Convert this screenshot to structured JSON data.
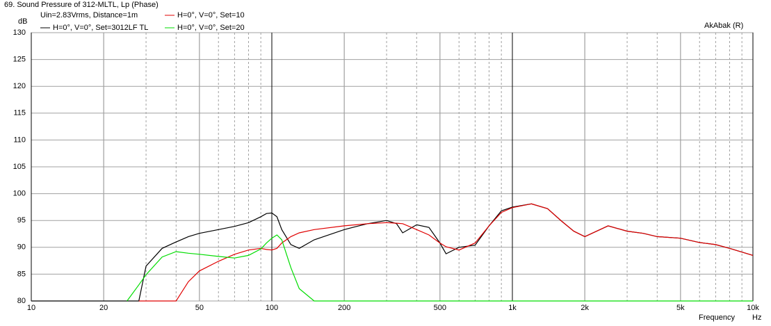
{
  "chart_data": {
    "type": "line",
    "title": "69. Sound Pressure of 312-MLTL, Lp (Phase)",
    "subtitle": "Uin=2.83Vrms, Distance=1m",
    "annotation": "AkAbak (R)",
    "y_label": "dB",
    "x_label": "Frequency",
    "x_unit": "Hz",
    "x_log": true,
    "grid": true,
    "xlim": [
      10,
      10000
    ],
    "ylim": [
      80,
      130
    ],
    "xticks": [
      10,
      20,
      50,
      100,
      200,
      500,
      {
        "value": 1000,
        "label": "1k"
      },
      {
        "value": 2000,
        "label": "2k"
      },
      {
        "value": 5000,
        "label": "5k"
      },
      {
        "value": 10000,
        "label": "10k"
      }
    ],
    "yticks": [
      80,
      85,
      90,
      95,
      100,
      105,
      110,
      115,
      120,
      125,
      130
    ],
    "x": [
      10,
      15,
      20,
      25,
      28,
      30,
      35,
      40,
      45,
      50,
      60,
      70,
      80,
      90,
      95,
      100,
      105,
      110,
      120,
      130,
      150,
      200,
      250,
      300,
      330,
      350,
      400,
      450,
      500,
      530,
      600,
      700,
      800,
      900,
      1000,
      1200,
      1400,
      1600,
      1800,
      2000,
      2500,
      3000,
      3500,
      4000,
      5000,
      6000,
      7000,
      8000,
      10000
    ],
    "series": [
      {
        "name": "H=0°, V=0°, Set=3012LF TL",
        "color": "#000000",
        "values": [
          80,
          80,
          80,
          80,
          80,
          86.5,
          89.8,
          91,
          92,
          92.6,
          93.3,
          93.9,
          94.6,
          95.7,
          96.3,
          96.4,
          95.7,
          93.3,
          90.5,
          89.8,
          91.4,
          93.3,
          94.4,
          95,
          94.4,
          92.7,
          94.2,
          93.7,
          90.8,
          88.8,
          90,
          90.4,
          94,
          96.8,
          97.5,
          98.1,
          97.2,
          94.9,
          93,
          92,
          94,
          93,
          92.6,
          92,
          91.7,
          90.9,
          90.5,
          89.8,
          88.5
        ]
      },
      {
        "name": "H=0°, V=0°, Set=10",
        "color": "#e00000",
        "values": [
          null,
          null,
          null,
          null,
          80,
          80,
          80,
          80,
          83.6,
          85.6,
          87.4,
          88.7,
          89.5,
          89.8,
          89.6,
          89.5,
          89.8,
          90.8,
          92,
          92.7,
          93.3,
          94,
          94.4,
          94.6,
          94.5,
          94.4,
          93.3,
          92.3,
          90.8,
          90.1,
          89.5,
          90.8,
          94,
          96.5,
          97.4,
          98.1,
          97.2,
          94.9,
          93,
          92,
          94,
          93,
          92.6,
          92,
          91.7,
          90.9,
          90.5,
          89.8,
          88.5
        ]
      },
      {
        "name": "H=0°, V=0°, Set=20",
        "color": "#00dd00",
        "values": [
          null,
          null,
          null,
          80,
          83,
          84.9,
          88.2,
          89.2,
          88.9,
          88.7,
          88.3,
          88,
          88.5,
          89.7,
          90.8,
          91.7,
          92.3,
          91.4,
          86.2,
          82.3,
          80,
          80,
          80,
          80,
          80,
          80,
          80,
          80,
          80,
          80,
          80,
          80,
          80,
          80,
          80,
          80,
          80,
          80,
          80,
          80,
          80,
          80,
          80,
          80,
          80,
          80,
          80,
          80,
          80
        ]
      }
    ]
  }
}
